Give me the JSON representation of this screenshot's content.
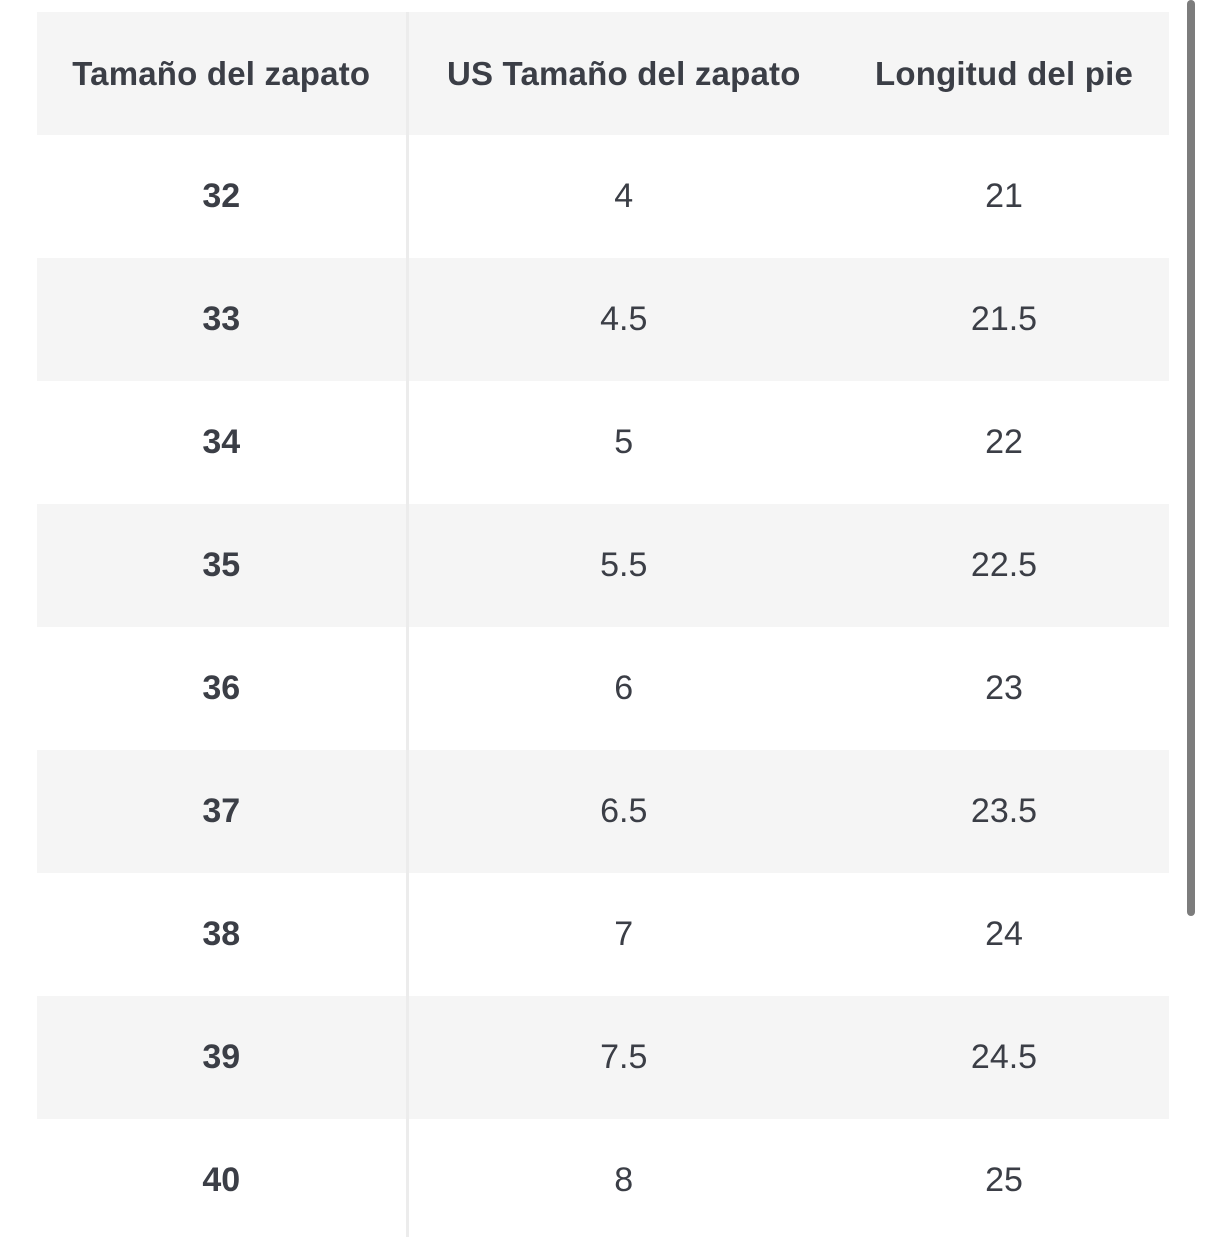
{
  "table": {
    "headers": [
      "Tamaño del zapato",
      "US Tamaño del zapato",
      "Longitud del pie"
    ],
    "rows": [
      [
        "32",
        "4",
        "21"
      ],
      [
        "33",
        "4.5",
        "21.5"
      ],
      [
        "34",
        "5",
        "22"
      ],
      [
        "35",
        "5.5",
        "22.5"
      ],
      [
        "36",
        "6",
        "23"
      ],
      [
        "37",
        "6.5",
        "23.5"
      ],
      [
        "38",
        "7",
        "24"
      ],
      [
        "39",
        "7.5",
        "24.5"
      ],
      [
        "40",
        "8",
        "25"
      ]
    ]
  },
  "colors": {
    "text": "#3b3e46",
    "stripe": "#f5f5f5",
    "divider": "#ececec",
    "scrollbar": "#7c7c7c"
  }
}
